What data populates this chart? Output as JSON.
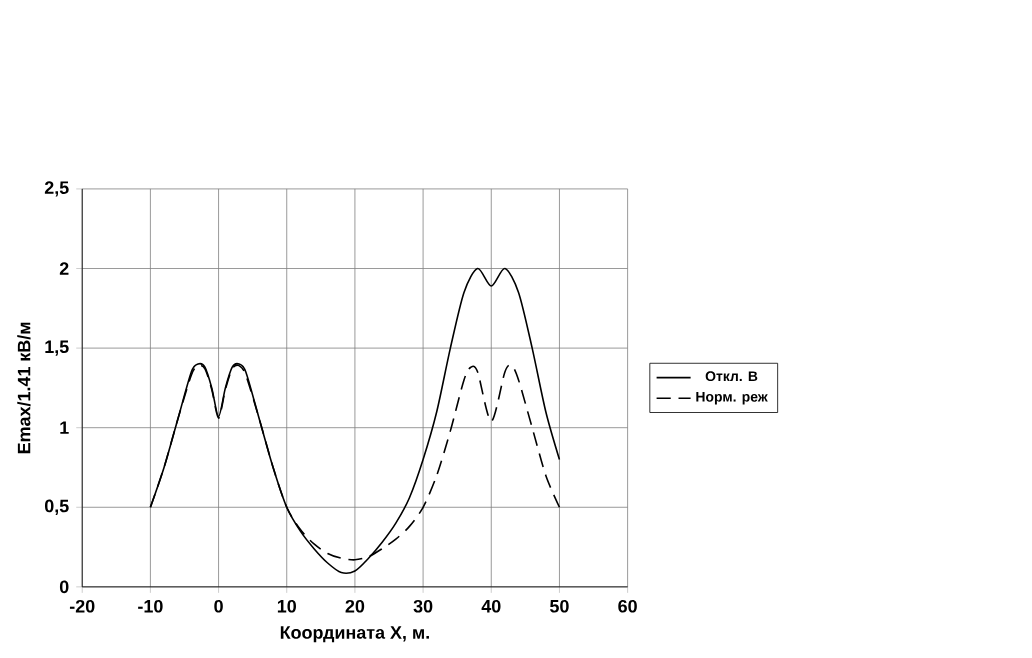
{
  "chart_data": {
    "type": "line",
    "xlabel": "Координата X, м.",
    "ylabel": "Emax/1.41 кВ/м",
    "xlim": [
      -20,
      60
    ],
    "xticks": [
      -20,
      -10,
      0,
      10,
      20,
      30,
      40,
      50,
      60
    ],
    "ylim": [
      0,
      2.5
    ],
    "yticks": [
      0,
      {
        "value": 0.5,
        "label": "0,5"
      },
      1,
      {
        "value": 1.5,
        "label": "1,5"
      },
      2,
      {
        "value": 2.5,
        "label": "2,5"
      }
    ],
    "grid": true,
    "legend": "right",
    "marker": "none",
    "series": [
      {
        "name": "Откл. В",
        "color": "#000000",
        "line_style": "solid",
        "x": [
          -10,
          -8,
          -6,
          -4,
          -3,
          -2,
          -1,
          0,
          1,
          2,
          3,
          4,
          6,
          8,
          10,
          12,
          14,
          16,
          18,
          20,
          22,
          24,
          26,
          28,
          30,
          32,
          34,
          36,
          38,
          40,
          42,
          44,
          46,
          48,
          50
        ],
        "values": [
          0.5,
          0.75,
          1.05,
          1.35,
          1.4,
          1.38,
          1.25,
          1.07,
          1.25,
          1.38,
          1.4,
          1.35,
          1.05,
          0.75,
          0.5,
          0.35,
          0.24,
          0.15,
          0.09,
          0.1,
          0.18,
          0.28,
          0.4,
          0.56,
          0.8,
          1.1,
          1.5,
          1.85,
          2.0,
          1.89,
          2.0,
          1.85,
          1.5,
          1.1,
          0.8
        ]
      },
      {
        "name": "Норм. реж",
        "color": "#000000",
        "line_style": "dashed",
        "x": [
          -10,
          -8,
          -6,
          -4,
          -3,
          -2,
          -1,
          0,
          1,
          2,
          3,
          4,
          6,
          8,
          10,
          12,
          14,
          16,
          18,
          20,
          22,
          24,
          26,
          28,
          30,
          32,
          34,
          36,
          37,
          38,
          40,
          42,
          43,
          44,
          46,
          48,
          50
        ],
        "values": [
          0.5,
          0.75,
          1.05,
          1.33,
          1.39,
          1.37,
          1.24,
          1.06,
          1.24,
          1.37,
          1.39,
          1.33,
          1.05,
          0.75,
          0.5,
          0.36,
          0.27,
          0.21,
          0.18,
          0.17,
          0.19,
          0.24,
          0.3,
          0.38,
          0.5,
          0.7,
          0.98,
          1.3,
          1.38,
          1.35,
          1.04,
          1.35,
          1.39,
          1.3,
          1.0,
          0.7,
          0.5
        ]
      }
    ]
  }
}
